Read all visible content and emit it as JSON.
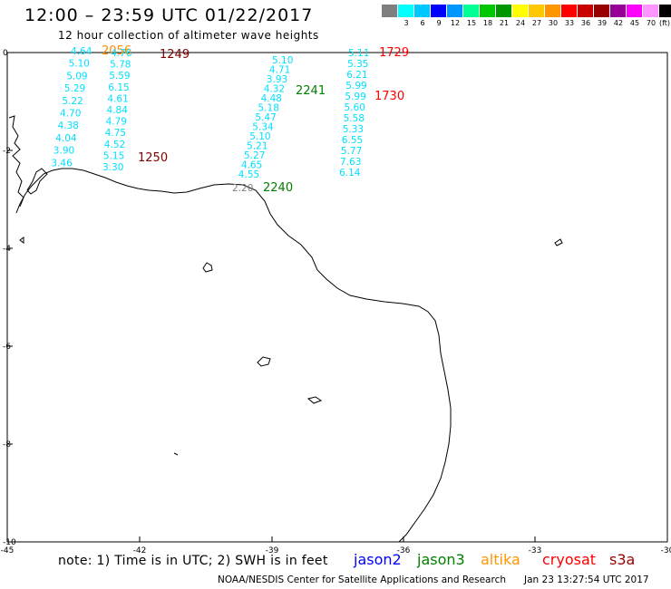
{
  "title": "12:00 – 23:59 UTC 01/22/2017",
  "subtitle": "12 hour collection of altimeter wave heights",
  "color_scale": {
    "colors": [
      "#7f7f7f",
      "#00ffff",
      "#00c8ff",
      "#0000ff",
      "#0096ff",
      "#00ff96",
      "#00c800",
      "#009600",
      "#ffff00",
      "#ffc800",
      "#ff9600",
      "#ff0000",
      "#c80000",
      "#960000",
      "#960096",
      "#ff00ff",
      "#ff96ff",
      "#000000"
    ],
    "labels": [
      "3",
      "6",
      "9",
      "12",
      "15",
      "18",
      "21",
      "24",
      "27",
      "30",
      "33",
      "36",
      "39",
      "42",
      "45",
      "70"
    ],
    "unit": "(ft)"
  },
  "axes": {
    "x_ticks": [
      "-45",
      "-42",
      "-39",
      "-36",
      "-33",
      "-30"
    ],
    "y_ticks": [
      "0",
      "-2",
      "-4",
      "-6",
      "-8",
      "-10"
    ]
  },
  "tracks": [
    {
      "satellite": "jason3",
      "color": "#00e0ff",
      "values": [
        "4.64",
        "5.10",
        "5.09",
        "5.29",
        "5.22",
        "4.70",
        "4.38",
        "4.04",
        "3.90",
        "3.46"
      ],
      "time": "2056",
      "time_color": "#ff8c00"
    },
    {
      "satellite": "jason3",
      "color": "#00e0ff",
      "values": [
        "4.76",
        "5.78",
        "5.59",
        "6.15",
        "4.61",
        "4.84",
        "4.79",
        "4.75",
        "4.52",
        "5.15",
        "3.30"
      ],
      "time_top": "1249",
      "time_bottom": "1250",
      "time_color": "#800000"
    },
    {
      "satellite": "jason3",
      "color": "#00e0ff",
      "values": [
        "5.10",
        "4.71",
        "3.93",
        "4.32",
        "4.48",
        "5.18",
        "5.47",
        "5.34",
        "5.10",
        "5.21",
        "5.27",
        "4.65",
        "4.55",
        "2.20"
      ],
      "time_top": "2241",
      "time_bottom": "2240",
      "time_color": "#008000"
    },
    {
      "satellite": "cryosat",
      "color": "#00e0ff",
      "values": [
        "5.11",
        "5.35",
        "6.21",
        "5.99",
        "5.99",
        "5.60",
        "5.58",
        "5.33",
        "6.55",
        "5.77",
        "7.63",
        "6.14"
      ],
      "time_top": "1729",
      "time_mid": "1730",
      "time_color": "#ff0000"
    }
  ],
  "note": "note: 1) Time is in UTC; 2) SWH is in feet",
  "satellites": [
    {
      "name": "jason2",
      "color": "#0000ff"
    },
    {
      "name": "jason3",
      "color": "#008000"
    },
    {
      "name": "altika",
      "color": "#ff9600"
    },
    {
      "name": "cryosat",
      "color": "#ff0000"
    },
    {
      "name": "s3a",
      "color": "#960000"
    }
  ],
  "footer": "NOAA/NESDIS Center for Satellite Applications and Research",
  "timestamp": "Jan 23 13:27:54 UTC 2017"
}
